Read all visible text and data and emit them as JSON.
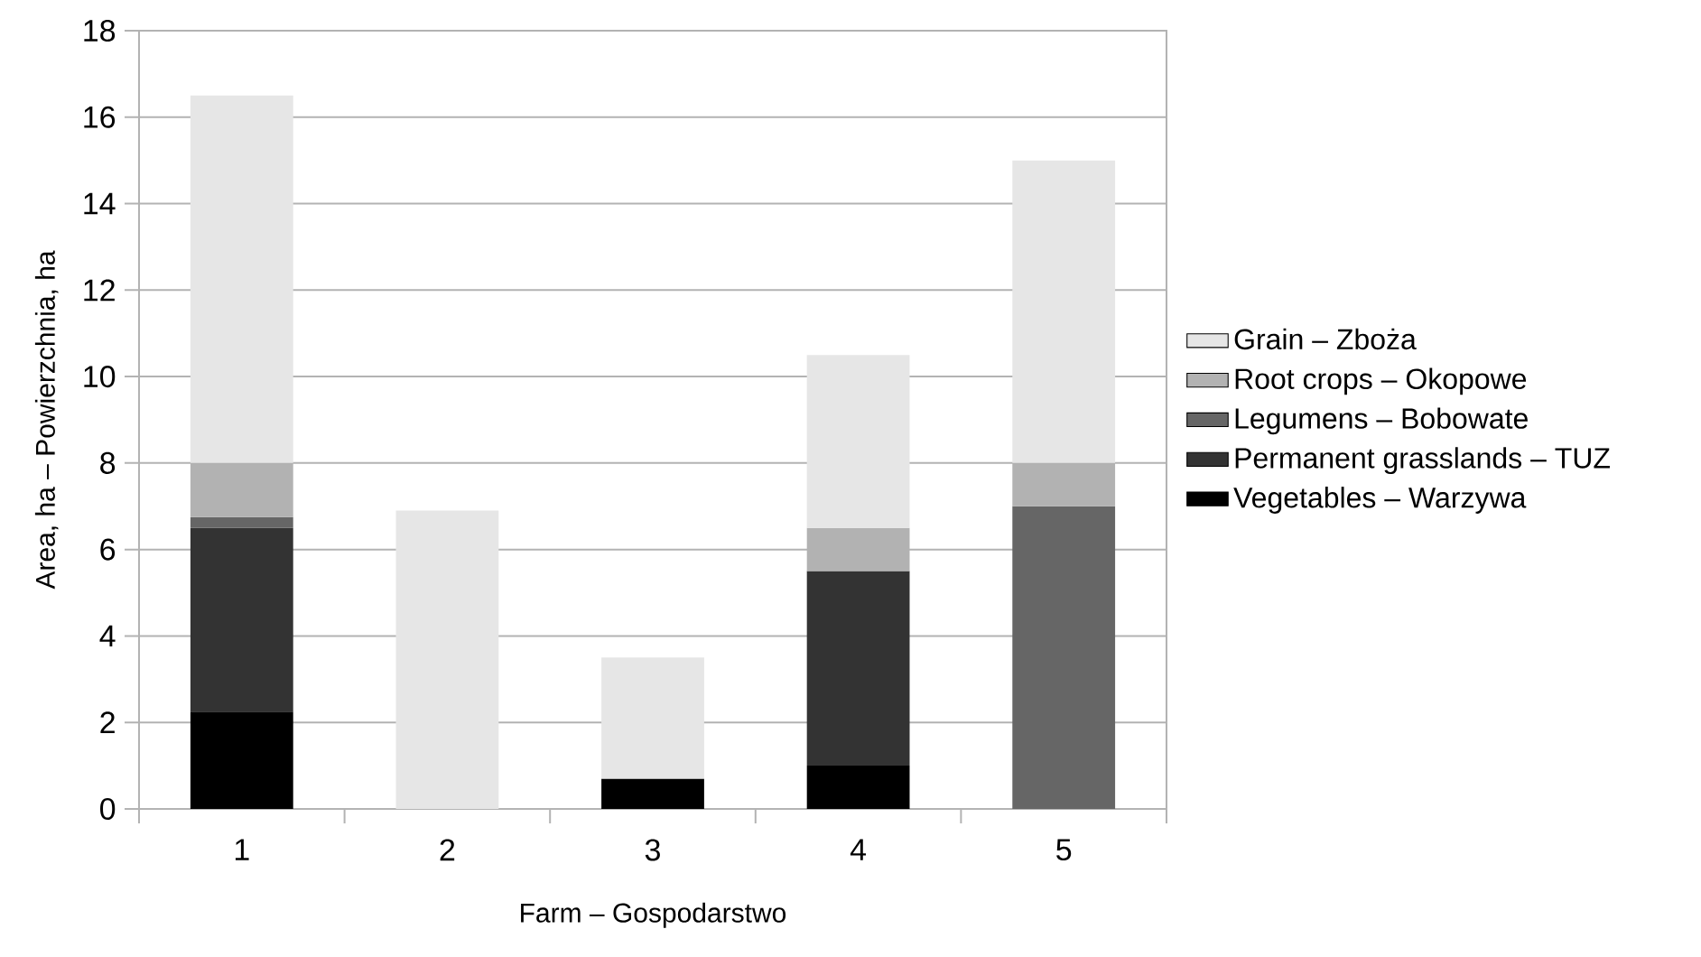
{
  "chart_data": {
    "type": "bar",
    "stacked": true,
    "xlabel": "Farm – Gospodarstwo",
    "ylabel": "Area, ha – Powierzchnia, ha",
    "categories": [
      "1",
      "2",
      "3",
      "4",
      "5"
    ],
    "series": [
      {
        "name": "Vegetables – Warzywa",
        "color": "#000000",
        "values": [
          2.25,
          null,
          0.7,
          1.0,
          null
        ]
      },
      {
        "name": "Permanent grasslands – TUZ",
        "color": "#333333",
        "values": [
          4.25,
          null,
          null,
          4.5,
          null
        ]
      },
      {
        "name": "Legumens – Bobowate",
        "color": "#666666",
        "values": [
          0.25,
          null,
          null,
          null,
          7.0
        ]
      },
      {
        "name": "Root crops – Okopowe",
        "color": "#b2b2b2",
        "values": [
          1.25,
          null,
          null,
          1.0,
          1.0
        ]
      },
      {
        "name": "Grain – Zboża",
        "color": "#e6e6e6",
        "values": [
          8.5,
          6.9,
          2.8,
          4.0,
          7.0
        ]
      }
    ],
    "ylim": [
      0,
      18
    ],
    "yticks": [
      0,
      2,
      4,
      6,
      8,
      10,
      12,
      14,
      16,
      18
    ],
    "grid": "y",
    "legend": "right"
  }
}
